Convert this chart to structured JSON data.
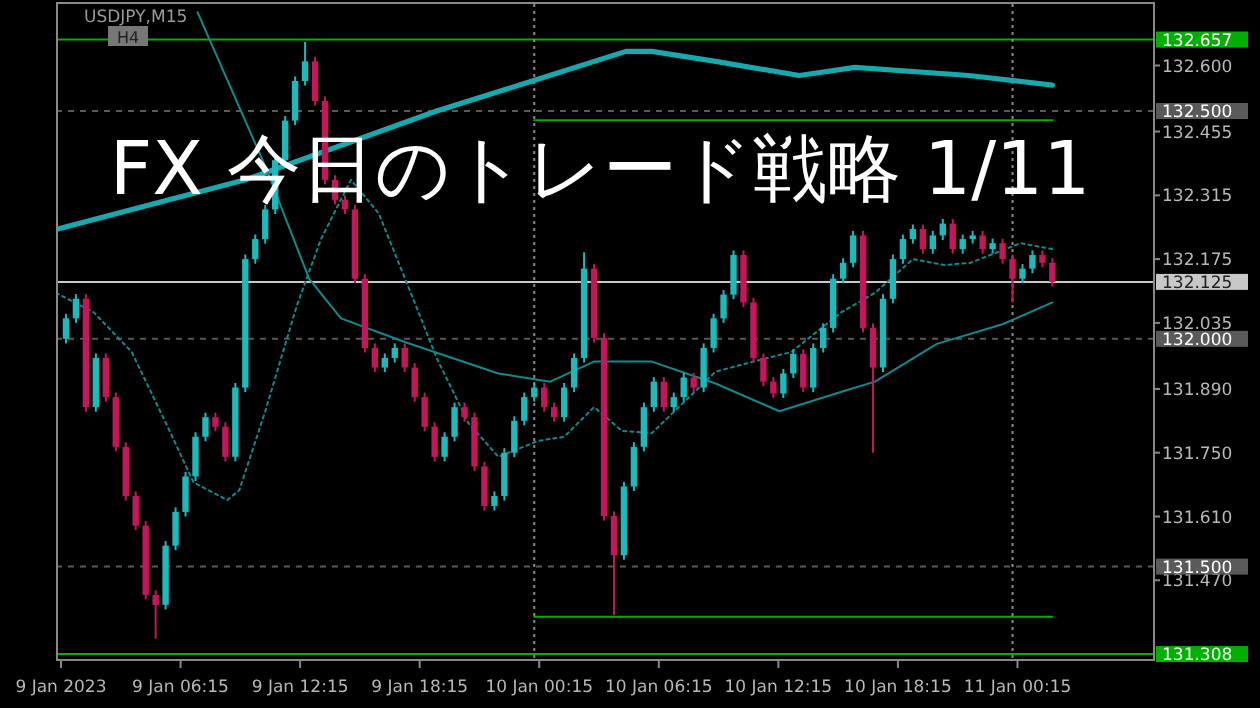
{
  "chart_data": {
    "type": "candlestick",
    "title": "FX 今日のトレード戦略 1/11",
    "annotations": [
      "USDJPY,M15",
      "H4"
    ],
    "x": [
      "2023-01-09T00:30",
      "2023-01-09T01:00",
      "2023-01-09T01:30",
      "2023-01-09T02:00",
      "2023-01-09T02:30",
      "2023-01-09T03:00",
      "2023-01-09T03:30",
      "2023-01-09T04:00",
      "2023-01-09T04:30",
      "2023-01-09T05:00",
      "2023-01-09T05:30",
      "2023-01-09T06:00",
      "2023-01-09T06:30",
      "2023-01-09T07:00",
      "2023-01-09T07:30",
      "2023-01-09T08:00",
      "2023-01-09T08:30",
      "2023-01-09T09:00",
      "2023-01-09T09:30",
      "2023-01-09T10:00",
      "2023-01-09T10:30",
      "2023-01-09T11:00",
      "2023-01-09T11:30",
      "2023-01-09T12:00",
      "2023-01-09T12:30",
      "2023-01-09T13:00",
      "2023-01-09T13:30",
      "2023-01-09T14:00",
      "2023-01-09T14:30",
      "2023-01-09T15:00",
      "2023-01-09T15:30",
      "2023-01-09T16:00",
      "2023-01-09T16:30",
      "2023-01-09T17:00",
      "2023-01-09T17:30",
      "2023-01-09T18:00",
      "2023-01-09T18:30",
      "2023-01-09T19:00",
      "2023-01-09T19:30",
      "2023-01-09T20:00",
      "2023-01-09T20:30",
      "2023-01-09T21:00",
      "2023-01-09T21:30",
      "2023-01-09T22:00",
      "2023-01-09T22:30",
      "2023-01-09T23:00",
      "2023-01-09T23:30",
      "2023-01-10T00:00",
      "2023-01-10T00:30",
      "2023-01-10T01:00",
      "2023-01-10T01:30",
      "2023-01-10T02:00",
      "2023-01-10T02:30",
      "2023-01-10T03:00",
      "2023-01-10T03:30",
      "2023-01-10T04:00",
      "2023-01-10T04:30",
      "2023-01-10T05:00",
      "2023-01-10T05:30",
      "2023-01-10T06:00",
      "2023-01-10T06:30",
      "2023-01-10T07:00",
      "2023-01-10T07:30",
      "2023-01-10T08:00",
      "2023-01-10T08:30",
      "2023-01-10T09:00",
      "2023-01-10T09:30",
      "2023-01-10T10:00",
      "2023-01-10T10:30",
      "2023-01-10T11:00",
      "2023-01-10T11:30",
      "2023-01-10T12:00",
      "2023-01-10T12:30",
      "2023-01-10T13:00",
      "2023-01-10T13:30",
      "2023-01-10T14:00",
      "2023-01-10T14:30",
      "2023-01-10T15:00",
      "2023-01-10T15:30",
      "2023-01-10T16:00",
      "2023-01-10T16:30",
      "2023-01-10T17:00",
      "2023-01-10T17:30",
      "2023-01-10T18:00",
      "2023-01-10T18:30",
      "2023-01-10T19:00",
      "2023-01-10T19:30",
      "2023-01-10T20:00",
      "2023-01-10T20:30",
      "2023-01-10T21:00",
      "2023-01-10T21:30",
      "2023-01-10T22:00",
      "2023-01-10T22:30",
      "2023-01-10T23:00",
      "2023-01-10T23:30",
      "2023-01-11T00:00",
      "2023-01-11T00:30",
      "2023-01-11T01:00",
      "2023-01-11T01:30",
      "2023-01-11T02:00"
    ],
    "ohlc": [
      [
        132.0,
        132.055,
        131.99,
        132.045
      ],
      [
        132.045,
        132.098,
        132.035,
        132.088
      ],
      [
        132.088,
        132.098,
        131.84,
        131.85
      ],
      [
        131.85,
        131.968,
        131.84,
        131.958
      ],
      [
        131.958,
        131.968,
        131.862,
        131.872
      ],
      [
        131.872,
        131.882,
        131.753,
        131.763
      ],
      [
        131.763,
        131.773,
        131.645,
        131.655
      ],
      [
        131.655,
        131.665,
        131.58,
        131.59
      ],
      [
        131.59,
        131.6,
        131.428,
        131.438
      ],
      [
        131.438,
        131.448,
        131.342,
        131.416
      ],
      [
        131.416,
        131.556,
        131.406,
        131.546
      ],
      [
        131.546,
        131.63,
        131.536,
        131.62
      ],
      [
        131.62,
        131.708,
        131.61,
        131.698
      ],
      [
        131.698,
        131.795,
        131.688,
        131.785
      ],
      [
        131.785,
        131.838,
        131.775,
        131.828
      ],
      [
        131.828,
        131.838,
        131.797,
        131.807
      ],
      [
        131.807,
        131.817,
        131.731,
        131.741
      ],
      [
        131.741,
        131.903,
        131.731,
        131.893
      ],
      [
        131.893,
        132.185,
        131.883,
        132.175
      ],
      [
        132.175,
        132.229,
        132.165,
        132.219
      ],
      [
        132.219,
        132.294,
        132.209,
        132.284
      ],
      [
        132.284,
        132.402,
        132.274,
        132.392
      ],
      [
        132.392,
        132.489,
        132.382,
        132.479
      ],
      [
        132.479,
        132.576,
        132.469,
        132.566
      ],
      [
        132.566,
        132.652,
        132.556,
        132.609
      ],
      [
        132.609,
        132.619,
        132.512,
        132.522
      ],
      [
        132.522,
        132.532,
        132.339,
        132.349
      ],
      [
        132.349,
        132.359,
        132.295,
        132.305
      ],
      [
        132.305,
        132.315,
        132.274,
        132.284
      ],
      [
        132.284,
        132.294,
        132.122,
        132.132
      ],
      [
        132.132,
        132.142,
        131.97,
        131.98
      ],
      [
        131.98,
        131.99,
        131.927,
        131.937
      ],
      [
        131.937,
        131.968,
        131.927,
        131.958
      ],
      [
        131.958,
        131.99,
        131.948,
        131.98
      ],
      [
        131.98,
        131.99,
        131.927,
        131.937
      ],
      [
        131.937,
        131.947,
        131.862,
        131.872
      ],
      [
        131.872,
        131.882,
        131.797,
        131.807
      ],
      [
        131.807,
        131.817,
        131.731,
        131.741
      ],
      [
        131.741,
        131.795,
        131.731,
        131.785
      ],
      [
        131.785,
        131.86,
        131.775,
        131.85
      ],
      [
        131.85,
        131.86,
        131.818,
        131.828
      ],
      [
        131.828,
        131.838,
        131.71,
        131.72
      ],
      [
        131.72,
        131.73,
        131.623,
        131.633
      ],
      [
        131.633,
        131.665,
        131.623,
        131.655
      ],
      [
        131.655,
        131.76,
        131.645,
        131.75
      ],
      [
        131.75,
        131.83,
        131.74,
        131.82
      ],
      [
        131.82,
        131.882,
        131.81,
        131.872
      ],
      [
        131.872,
        131.903,
        131.862,
        131.893
      ],
      [
        131.893,
        131.903,
        131.84,
        131.85
      ],
      [
        131.85,
        131.86,
        131.818,
        131.828
      ],
      [
        131.828,
        131.903,
        131.818,
        131.893
      ],
      [
        131.893,
        131.968,
        131.883,
        131.958
      ],
      [
        131.958,
        132.19,
        131.948,
        132.154
      ],
      [
        132.154,
        132.164,
        131.992,
        132.002
      ],
      [
        132.002,
        132.012,
        131.601,
        131.611
      ],
      [
        131.611,
        131.621,
        131.394,
        131.525
      ],
      [
        131.525,
        131.686,
        131.515,
        131.676
      ],
      [
        131.676,
        131.773,
        131.666,
        131.763
      ],
      [
        131.763,
        131.86,
        131.753,
        131.85
      ],
      [
        131.85,
        131.916,
        131.84,
        131.906
      ],
      [
        131.906,
        131.916,
        131.84,
        131.85
      ],
      [
        131.85,
        131.882,
        131.84,
        131.872
      ],
      [
        131.872,
        131.925,
        131.862,
        131.915
      ],
      [
        131.915,
        131.925,
        131.883,
        131.893
      ],
      [
        131.893,
        131.99,
        131.883,
        131.98
      ],
      [
        131.98,
        132.055,
        131.97,
        132.045
      ],
      [
        132.045,
        132.107,
        132.035,
        132.097
      ],
      [
        132.097,
        132.194,
        132.087,
        132.184
      ],
      [
        132.184,
        132.194,
        132.07,
        132.08
      ],
      [
        132.08,
        132.09,
        131.948,
        131.958
      ],
      [
        131.958,
        131.968,
        131.896,
        131.906
      ],
      [
        131.906,
        131.916,
        131.87,
        131.88
      ],
      [
        131.88,
        131.934,
        131.87,
        131.924
      ],
      [
        131.924,
        131.977,
        131.914,
        131.967
      ],
      [
        131.967,
        131.977,
        131.883,
        131.893
      ],
      [
        131.893,
        131.99,
        131.883,
        131.98
      ],
      [
        131.98,
        132.034,
        131.97,
        132.024
      ],
      [
        132.024,
        132.142,
        132.014,
        132.132
      ],
      [
        132.132,
        132.177,
        132.122,
        132.167
      ],
      [
        132.167,
        132.237,
        132.157,
        132.227
      ],
      [
        132.227,
        132.237,
        132.014,
        132.024
      ],
      [
        132.024,
        132.034,
        131.75,
        131.937
      ],
      [
        131.937,
        132.098,
        131.927,
        132.088
      ],
      [
        132.088,
        132.185,
        132.078,
        132.175
      ],
      [
        132.175,
        132.229,
        132.165,
        132.219
      ],
      [
        132.219,
        132.251,
        132.209,
        132.241
      ],
      [
        132.241,
        132.251,
        132.187,
        132.197
      ],
      [
        132.197,
        132.237,
        132.187,
        132.227
      ],
      [
        132.227,
        132.263,
        132.217,
        132.253
      ],
      [
        132.253,
        132.263,
        132.187,
        132.197
      ],
      [
        132.197,
        132.229,
        132.187,
        132.219
      ],
      [
        132.219,
        132.237,
        132.209,
        132.227
      ],
      [
        132.227,
        132.237,
        132.187,
        132.197
      ],
      [
        132.197,
        132.22,
        132.187,
        132.21
      ],
      [
        132.21,
        132.22,
        132.165,
        132.175
      ],
      [
        132.175,
        132.185,
        132.08,
        132.132
      ],
      [
        132.132,
        132.164,
        132.122,
        132.154
      ],
      [
        132.154,
        132.194,
        132.144,
        132.184
      ],
      [
        132.184,
        132.194,
        132.157,
        132.167
      ],
      [
        132.167,
        132.177,
        132.115,
        132.125
      ]
    ],
    "series": [
      {
        "type": "line",
        "color": "#17a9ad",
        "line_style": "solid",
        "x": [
          "2023-01-09T00:00",
          "2023-01-09T09:30",
          "2023-01-09T19:06",
          "2023-01-09T23:54",
          "2023-01-10T04:36",
          "2023-01-10T05:54",
          "2023-01-10T09:06",
          "2023-01-10T13:18",
          "2023-01-10T16:06",
          "2023-01-10T21:48",
          "2023-01-11T02:00"
        ],
        "values": [
          132.24,
          132.349,
          132.5,
          132.566,
          132.631,
          132.631,
          132.609,
          132.578,
          132.596,
          132.578,
          132.557
        ]
      },
      {
        "type": "line",
        "color": "#12898c",
        "line_style": "solid",
        "x": [
          "2023-01-09T07:06",
          "2023-01-09T10:30",
          "2023-01-09T12:42",
          "2023-01-09T14:18",
          "2023-01-09T17:30",
          "2023-01-09T22:12",
          "2023-01-10T00:48",
          "2023-01-10T03:00",
          "2023-01-10T05:54",
          "2023-01-10T09:06",
          "2023-01-10T12:18",
          "2023-01-10T15:30",
          "2023-01-10T17:06",
          "2023-01-10T20:12",
          "2023-01-10T23:30",
          "2023-01-11T02:00"
        ],
        "values": [
          132.717,
          132.379,
          132.132,
          132.045,
          131.993,
          131.924,
          131.906,
          131.95,
          131.95,
          131.902,
          131.841,
          131.885,
          131.906,
          131.989,
          132.032,
          132.08
        ]
      },
      {
        "type": "line",
        "color": "#12898c",
        "line_style": "dotted",
        "x": [
          "2023-01-09T00:00",
          "2023-01-09T01:54",
          "2023-01-09T03:48",
          "2023-01-09T05:42",
          "2023-01-09T06:54",
          "2023-01-09T08:36",
          "2023-01-09T09:12",
          "2023-01-09T10:30",
          "2023-01-09T12:06",
          "2023-01-09T13:18",
          "2023-01-09T14:48",
          "2023-01-09T16:12",
          "2023-01-09T17:48",
          "2023-01-09T19:06",
          "2023-01-09T20:42",
          "2023-01-09T22:12",
          "2023-01-10T00:12",
          "2023-01-10T01:30",
          "2023-01-10T03:00",
          "2023-01-10T04:24",
          "2023-01-10T05:54",
          "2023-01-10T09:06",
          "2023-01-10T11:00",
          "2023-01-10T12:54",
          "2023-01-10T15:24",
          "2023-01-10T17:06",
          "2023-01-10T19:00",
          "2023-01-10T20:36",
          "2023-01-10T21:54",
          "2023-01-11T00:24",
          "2023-01-11T02:00"
        ],
        "values": [
          132.101,
          132.058,
          131.971,
          131.798,
          131.685,
          131.646,
          131.668,
          131.841,
          132.075,
          132.219,
          132.349,
          132.275,
          132.101,
          131.958,
          131.815,
          131.741,
          131.776,
          131.785,
          131.85,
          131.798,
          131.793,
          131.928,
          131.95,
          131.971,
          132.058,
          132.101,
          132.175,
          132.162,
          132.167,
          132.21,
          132.197
        ]
      },
      {
        "type": "line",
        "color": "#00b000",
        "line_style": "solid",
        "x": [
          "2023-01-10T00:00",
          "2023-01-11T02:00"
        ],
        "values": [
          132.48,
          132.48
        ]
      },
      {
        "type": "line",
        "color": "#00b000",
        "line_style": "solid",
        "x": [
          "2023-01-10T00:00",
          "2023-01-11T02:00"
        ],
        "values": [
          131.39,
          131.39
        ]
      }
    ],
    "ref_lines": [
      {
        "axis": "y",
        "value": 132.657,
        "label": "132.657",
        "color": "#00b000",
        "line_style": "solid"
      },
      {
        "axis": "y",
        "value": 132.5,
        "label": "132.500",
        "color": "#5a5a5a",
        "line_style": "dashed"
      },
      {
        "axis": "y",
        "value": 132.125,
        "label": "132.125",
        "color": "#c8c8c8",
        "line_style": "solid"
      },
      {
        "axis": "y",
        "value": 132.0,
        "label": "132.000",
        "color": "#5a5a5a",
        "line_style": "dashed"
      },
      {
        "axis": "y",
        "value": 131.5,
        "label": "131.500",
        "color": "#5a5a5a",
        "line_style": "dashed"
      },
      {
        "axis": "y",
        "value": 131.308,
        "label": "131.308",
        "color": "#00b000",
        "line_style": "solid"
      },
      {
        "axis": "x",
        "value": "2023-01-10T00:00",
        "color": "#8a8a8a",
        "line_style": "dotted"
      },
      {
        "axis": "x",
        "value": "2023-01-11T00:00",
        "color": "#8a8a8a",
        "line_style": "dotted"
      }
    ],
    "xlim": [
      "2023-01-09T00:00",
      "2023-01-11T07:06"
    ],
    "ylim": [
      131.295,
      132.735
    ],
    "xticks": [
      {
        "value": "2023-01-09T00:15",
        "label": "9 Jan 2023"
      },
      {
        "value": "2023-01-09T06:15",
        "label": "9 Jan 06:15"
      },
      {
        "value": "2023-01-09T12:15",
        "label": "9 Jan 12:15"
      },
      {
        "value": "2023-01-09T18:15",
        "label": "9 Jan 18:15"
      },
      {
        "value": "2023-01-10T00:15",
        "label": "10 Jan 00:15"
      },
      {
        "value": "2023-01-10T06:15",
        "label": "10 Jan 06:15"
      },
      {
        "value": "2023-01-10T12:15",
        "label": "10 Jan 12:15"
      },
      {
        "value": "2023-01-10T18:15",
        "label": "10 Jan 18:15"
      },
      {
        "value": "2023-01-11T00:15",
        "label": "11 Jan 00:15"
      }
    ],
    "yticks": [
      {
        "value": 132.6,
        "label": "132.600"
      },
      {
        "value": 132.455,
        "label": "132.455"
      },
      {
        "value": 132.315,
        "label": "132.315"
      },
      {
        "value": 132.175,
        "label": "132.175"
      },
      {
        "value": 132.035,
        "label": "132.035"
      },
      {
        "value": 131.89,
        "label": "131.890"
      },
      {
        "value": 131.75,
        "label": "131.750"
      },
      {
        "value": 131.61,
        "label": "131.610"
      },
      {
        "value": 131.47,
        "label": "131.470"
      }
    ]
  }
}
